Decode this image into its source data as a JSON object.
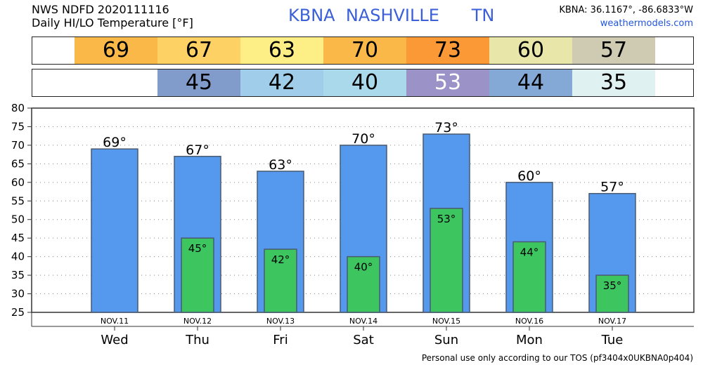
{
  "header": {
    "line1": "NWS NDFD 2020111116",
    "line2": "Daily HI/LO Temperature [°F]",
    "station": "KBNA",
    "city": "NASHVILLE",
    "state": "TN",
    "coords": "KBNA: 36.1167°, -86.6833°W",
    "site": "weathermodels.com"
  },
  "hi_strip": [
    {
      "value": "69",
      "color": "#f9b847"
    },
    {
      "value": "67",
      "color": "#fdd163"
    },
    {
      "value": "63",
      "color": "#fdee85"
    },
    {
      "value": "70",
      "color": "#f9b847"
    },
    {
      "value": "73",
      "color": "#fb9936"
    },
    {
      "value": "60",
      "color": "#e8e6a8"
    },
    {
      "value": "57",
      "color": "#cfcbb2"
    }
  ],
  "lo_strip": [
    {
      "value": "",
      "color": "#ffffff"
    },
    {
      "value": "45",
      "color": "#819ccb"
    },
    {
      "value": "42",
      "color": "#9fcdea"
    },
    {
      "value": "40",
      "color": "#abd9ec"
    },
    {
      "value": "53",
      "color": "#9b92c8"
    },
    {
      "value": "44",
      "color": "#84a9d6"
    },
    {
      "value": "35",
      "color": "#dff1f1"
    }
  ],
  "chart_data": {
    "type": "bar",
    "categories": [
      "NOV.11",
      "NOV.12",
      "NOV.13",
      "NOV.14",
      "NOV.15",
      "NOV.16",
      "NOV.17"
    ],
    "days": [
      "Wed",
      "Thu",
      "Fri",
      "Sat",
      "Sun",
      "Mon",
      "Tue"
    ],
    "series": [
      {
        "values": [
          69,
          67,
          63,
          70,
          73,
          60,
          57
        ],
        "labels": [
          "69°",
          "67°",
          "63°",
          "70°",
          "73°",
          "60°",
          "57°"
        ],
        "color": "#5599ee"
      },
      {
        "values": [
          null,
          45,
          42,
          40,
          53,
          44,
          35
        ],
        "labels": [
          "",
          "45°",
          "42°",
          "40°",
          "53°",
          "44°",
          "35°"
        ],
        "color": "#3dc560"
      }
    ],
    "ylim": [
      25,
      80
    ],
    "yticks": [
      "80",
      "75",
      "70",
      "65",
      "60",
      "55",
      "50",
      "45",
      "40",
      "35",
      "30",
      "25"
    ],
    "grid": true
  },
  "footer": "Personal use only according to our TOS (pf3404x0UKBNA0p404)"
}
